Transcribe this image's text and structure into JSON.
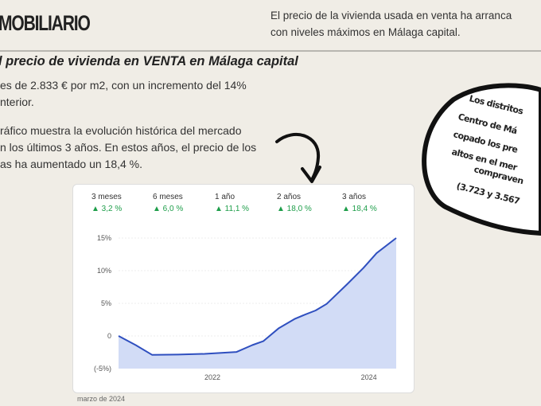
{
  "header": {
    "brand": "MOBILIARIO",
    "intro_lines": [
      "El precio de la vivienda usada en venta  ha arranca",
      "con niveles máximos en Málaga capital."
    ]
  },
  "section": {
    "subtitle": "l precio de vivienda en VENTA en Málaga capital",
    "para1": [
      " es de 2.833 € por m2, con un incremento del 14%",
      "nterior."
    ],
    "para2": [
      "ráfico muestra la evolución histórica del mercado",
      "n los últimos 3 años. En estos años, el precio de los",
      "as ha aumentado un 18,4 %."
    ]
  },
  "bubble": {
    "lines": [
      "Los distritos",
      "Centro de Má",
      "copado los pre",
      "altos en el mer",
      "compraven",
      "(3.723 y 3.567"
    ]
  },
  "chart_data": {
    "type": "area",
    "periods": [
      {
        "label": "3 meses",
        "change": "3,2 %"
      },
      {
        "label": "6 meses",
        "change": "6,0 %"
      },
      {
        "label": "1 año",
        "change": "11,1 %"
      },
      {
        "label": "2 años",
        "change": "18,0 %"
      },
      {
        "label": "3 años",
        "change": "18,4 %"
      }
    ],
    "y_ticks": [
      "15%",
      "10%",
      "5%",
      "0",
      "(-5%)"
    ],
    "y_tick_values": [
      15,
      10,
      5,
      0,
      -5
    ],
    "x_ticks": [
      "2022",
      "2024"
    ],
    "x_tick_values": [
      2022,
      2024
    ],
    "ylim": [
      -5,
      15
    ],
    "xlim": [
      2020.8,
      2024.35
    ],
    "x": [
      2020.8,
      2021.02,
      2021.23,
      2021.56,
      2021.9,
      2022.31,
      2022.51,
      2022.65,
      2022.85,
      2023.05,
      2023.19,
      2023.32,
      2023.46,
      2023.73,
      2023.93,
      2024.1,
      2024.35
    ],
    "y": [
      0,
      -1.4,
      -2.9,
      -2.85,
      -2.75,
      -2.45,
      -1.4,
      -0.8,
      1.2,
      2.6,
      3.3,
      3.9,
      4.9,
      8.0,
      10.4,
      12.7,
      15.0
    ],
    "date": "marzo de 2024",
    "line_color": "#2f4fbf",
    "fill_color": "#d2dcf6",
    "up_color": "#1e9e4a"
  }
}
